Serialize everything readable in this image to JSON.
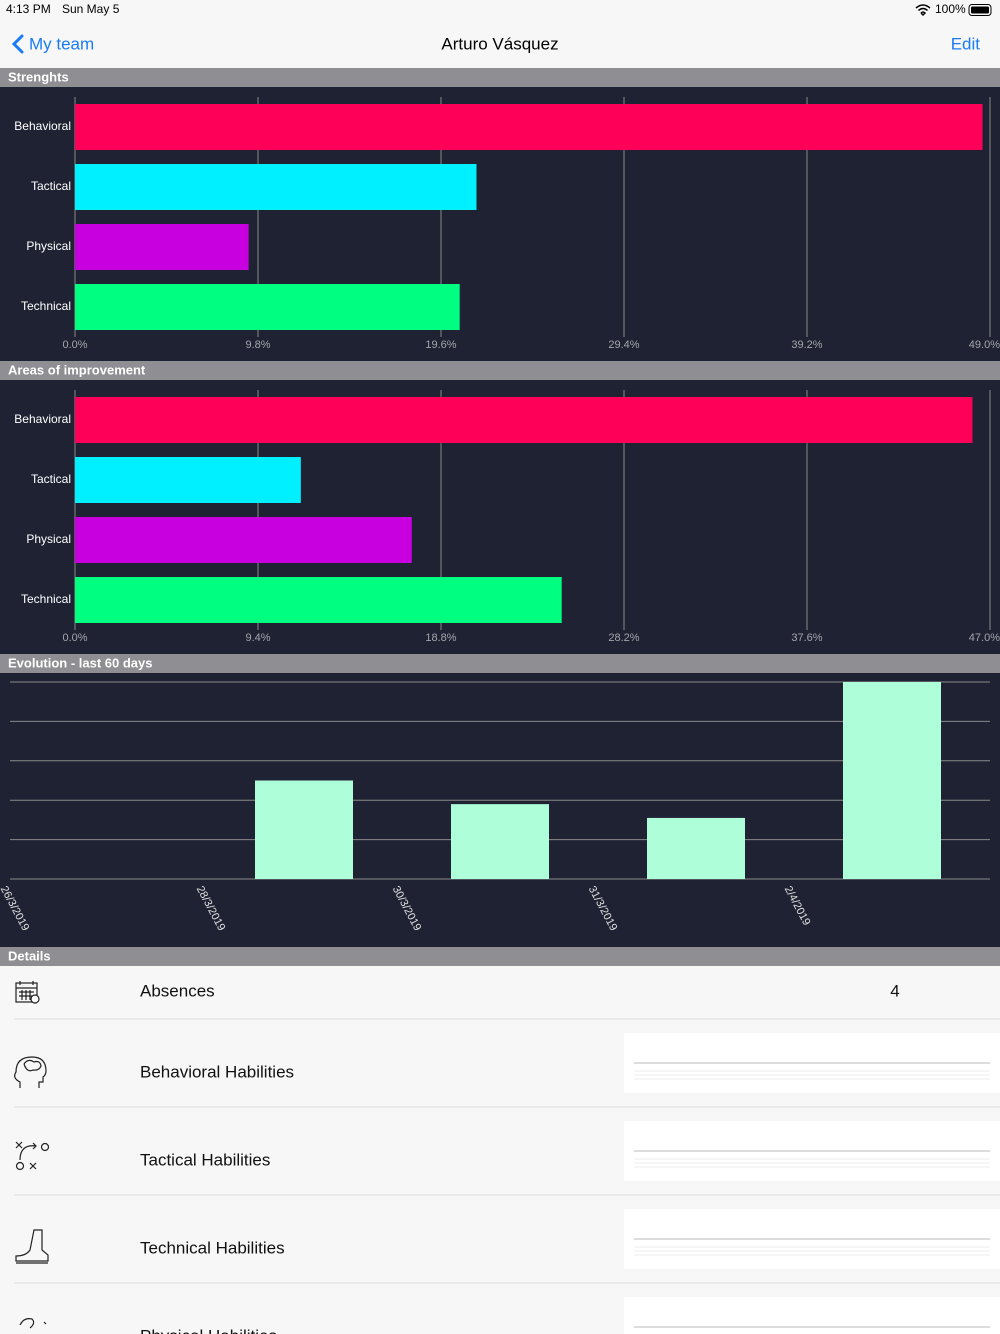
{
  "status_bar": {
    "time": "4:13 PM",
    "date": "Sun May 5",
    "battery": "100%"
  },
  "nav": {
    "back": "My team",
    "title": "Arturo Vásquez",
    "action": "Edit"
  },
  "chart_data": [
    {
      "type": "hbar",
      "title": "Strenghts",
      "categories": [
        "Behavioral",
        "Tactical",
        "Physical",
        "Technical"
      ],
      "values": [
        48.6,
        21.5,
        9.3,
        20.6
      ],
      "colors": [
        "#ff0059",
        "#00f0ff",
        "#c800e0",
        "#00ff80"
      ],
      "xlim": [
        0,
        49
      ],
      "xticks": [
        {
          "value": 0,
          "label": "0.0%"
        },
        {
          "value": 9.8,
          "label": "9.8%"
        },
        {
          "value": 19.6,
          "label": "19.6%"
        },
        {
          "value": 29.4,
          "label": "29.4%"
        },
        {
          "value": 39.2,
          "label": "39.2%"
        },
        {
          "value": 49,
          "label": "49.0%"
        }
      ],
      "grid": true
    },
    {
      "type": "hbar",
      "title": "Areas of improvement",
      "categories": [
        "Behavioral",
        "Tactical",
        "Physical",
        "Technical"
      ],
      "values": [
        46.1,
        11.6,
        17.3,
        25.0
      ],
      "colors": [
        "#ff0059",
        "#00f0ff",
        "#c800e0",
        "#00ff80"
      ],
      "xlim": [
        0,
        47
      ],
      "xticks": [
        {
          "value": 0,
          "label": "0.0%"
        },
        {
          "value": 9.4,
          "label": "9.4%"
        },
        {
          "value": 18.8,
          "label": "18.8%"
        },
        {
          "value": 28.2,
          "label": "28.2%"
        },
        {
          "value": 37.6,
          "label": "37.6%"
        },
        {
          "value": 47,
          "label": "47.0%"
        }
      ],
      "grid": true
    },
    {
      "type": "bar",
      "title": "Evolution - last 60 days",
      "categories": [
        "26/3/2019",
        "28/3/2019",
        "30/3/2019",
        "31/3/2019",
        "2/4/2019"
      ],
      "values": [
        0,
        2.5,
        1.9,
        1.55,
        5
      ],
      "color": "#aeffd9",
      "ylim": [
        0,
        5
      ],
      "yticks": [
        0,
        1,
        2,
        3,
        4,
        5
      ],
      "grid": true
    }
  ],
  "details": {
    "title": "Details",
    "rows": [
      {
        "label": "Absences",
        "value": 4
      },
      {
        "label": "Behavioral Habilities"
      },
      {
        "label": "Tactical Habilities"
      },
      {
        "label": "Technical Habilities"
      },
      {
        "label": "Physical Habilities"
      }
    ]
  }
}
